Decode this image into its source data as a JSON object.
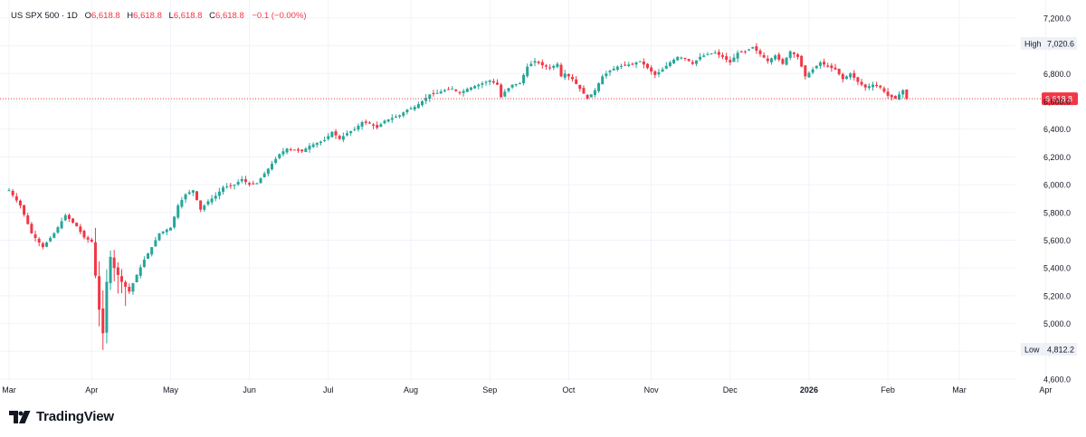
{
  "header": {
    "symbol": "US SPX 500 · 1D",
    "open_label": "O",
    "open": "6,618.8",
    "high_label": "H",
    "high": "6,618.8",
    "low_label": "L",
    "low": "6,618.8",
    "close_label": "C",
    "close": "6,618.8",
    "change": "−0.1 (−0.00%)"
  },
  "brand": {
    "name": "TradingView"
  },
  "colors": {
    "up": "#26a69a",
    "down": "#f23645",
    "grid": "#f0f3fa",
    "price_line": "#f23645"
  },
  "chart_data": {
    "type": "candlestick",
    "title": "US SPX 500 · 1D",
    "y_ticks": [
      "7,200.0",
      "7,000.0",
      "6,800.0",
      "6,600.0",
      "6,400.0",
      "6,200.0",
      "6,000.0",
      "5,800.0",
      "5,600.0",
      "5,400.0",
      "5,200.0",
      "5,000.0",
      "4,800.0",
      "4,600.0"
    ],
    "x_labels": [
      {
        "label": "Mar",
        "bold": false,
        "t": 0
      },
      {
        "label": "Apr",
        "bold": false,
        "t": 22
      },
      {
        "label": "May",
        "bold": false,
        "t": 43
      },
      {
        "label": "Jun",
        "bold": false,
        "t": 64
      },
      {
        "label": "Jul",
        "bold": false,
        "t": 85
      },
      {
        "label": "Aug",
        "bold": false,
        "t": 107
      },
      {
        "label": "Sep",
        "bold": false,
        "t": 128
      },
      {
        "label": "Oct",
        "bold": false,
        "t": 149
      },
      {
        "label": "Nov",
        "bold": false,
        "t": 171
      },
      {
        "label": "Dec",
        "bold": false,
        "t": 192
      },
      {
        "label": "2026",
        "bold": true,
        "t": 213
      },
      {
        "label": "Feb",
        "bold": false,
        "t": 234
      },
      {
        "label": "Mar",
        "bold": false,
        "t": 253
      },
      {
        "label": "Apr",
        "bold": false,
        "t": 276
      }
    ],
    "high_marker": {
      "label": "High",
      "value": "7,020.6"
    },
    "low_marker": {
      "label": "Low",
      "value": "4,812.2"
    },
    "last_price": 6618.8,
    "last_price_label": "6,618.8",
    "keypoints": [
      [
        0,
        5960
      ],
      [
        3,
        5850
      ],
      [
        6,
        5650
      ],
      [
        9,
        5550
      ],
      [
        12,
        5650
      ],
      [
        15,
        5780
      ],
      [
        18,
        5700
      ],
      [
        20,
        5620
      ],
      [
        22,
        5590
      ],
      [
        24,
        5100
      ],
      [
        25,
        4930
      ],
      [
        26,
        5300
      ],
      [
        27,
        5480
      ],
      [
        28,
        5400
      ],
      [
        30,
        5300
      ],
      [
        32,
        5230
      ],
      [
        34,
        5350
      ],
      [
        36,
        5460
      ],
      [
        38,
        5550
      ],
      [
        40,
        5650
      ],
      [
        43,
        5690
      ],
      [
        45,
        5850
      ],
      [
        47,
        5930
      ],
      [
        49,
        5960
      ],
      [
        51,
        5820
      ],
      [
        53,
        5880
      ],
      [
        55,
        5920
      ],
      [
        57,
        5980
      ],
      [
        60,
        6000
      ],
      [
        62,
        6040
      ],
      [
        64,
        6000
      ],
      [
        66,
        6010
      ],
      [
        68,
        6080
      ],
      [
        70,
        6150
      ],
      [
        72,
        6220
      ],
      [
        74,
        6260
      ],
      [
        76,
        6250
      ],
      [
        78,
        6240
      ],
      [
        80,
        6280
      ],
      [
        82,
        6300
      ],
      [
        84,
        6320
      ],
      [
        86,
        6380
      ],
      [
        88,
        6330
      ],
      [
        90,
        6370
      ],
      [
        92,
        6400
      ],
      [
        94,
        6450
      ],
      [
        96,
        6440
      ],
      [
        98,
        6410
      ],
      [
        100,
        6460
      ],
      [
        102,
        6480
      ],
      [
        104,
        6500
      ],
      [
        106,
        6540
      ],
      [
        108,
        6560
      ],
      [
        110,
        6600
      ],
      [
        112,
        6650
      ],
      [
        114,
        6660
      ],
      [
        116,
        6680
      ],
      [
        118,
        6690
      ],
      [
        120,
        6660
      ],
      [
        122,
        6690
      ],
      [
        124,
        6710
      ],
      [
        126,
        6730
      ],
      [
        128,
        6750
      ],
      [
        130,
        6720
      ],
      [
        131,
        6630
      ],
      [
        132,
        6670
      ],
      [
        134,
        6720
      ],
      [
        136,
        6730
      ],
      [
        138,
        6850
      ],
      [
        140,
        6890
      ],
      [
        142,
        6860
      ],
      [
        144,
        6840
      ],
      [
        146,
        6870
      ],
      [
        147,
        6780
      ],
      [
        148,
        6800
      ],
      [
        150,
        6760
      ],
      [
        152,
        6690
      ],
      [
        154,
        6620
      ],
      [
        156,
        6680
      ],
      [
        158,
        6780
      ],
      [
        160,
        6820
      ],
      [
        162,
        6850
      ],
      [
        164,
        6860
      ],
      [
        166,
        6870
      ],
      [
        168,
        6890
      ],
      [
        170,
        6840
      ],
      [
        172,
        6790
      ],
      [
        174,
        6830
      ],
      [
        176,
        6880
      ],
      [
        178,
        6920
      ],
      [
        180,
        6910
      ],
      [
        182,
        6870
      ],
      [
        184,
        6920
      ],
      [
        186,
        6940
      ],
      [
        188,
        6950
      ],
      [
        190,
        6920
      ],
      [
        192,
        6880
      ],
      [
        194,
        6950
      ],
      [
        196,
        6960
      ],
      [
        198,
        6990
      ],
      [
        200,
        6940
      ],
      [
        202,
        6890
      ],
      [
        204,
        6930
      ],
      [
        206,
        6870
      ],
      [
        208,
        6960
      ],
      [
        210,
        6920
      ],
      [
        212,
        6780
      ],
      [
        214,
        6830
      ],
      [
        216,
        6880
      ],
      [
        218,
        6850
      ],
      [
        220,
        6830
      ],
      [
        222,
        6760
      ],
      [
        224,
        6800
      ],
      [
        226,
        6740
      ],
      [
        228,
        6700
      ],
      [
        230,
        6720
      ],
      [
        232,
        6700
      ],
      [
        234,
        6640
      ],
      [
        236,
        6620
      ],
      [
        238,
        6680
      ],
      [
        239,
        6610
      ]
    ]
  }
}
